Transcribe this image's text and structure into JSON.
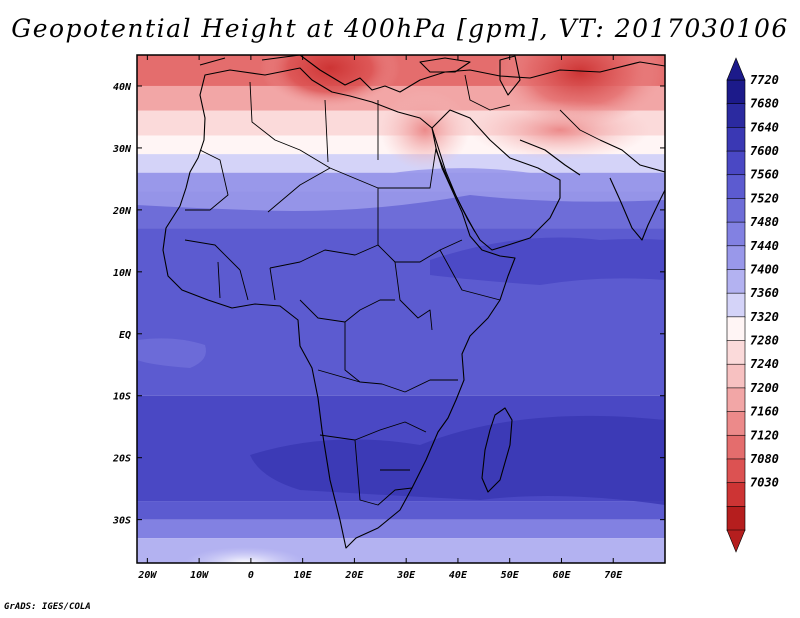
{
  "title": "Geopotential Height at 400hPa [gpm], VT: 2017030106",
  "footer": "GrADS: IGES/COLA",
  "axes": {
    "lon_labels": [
      "20W",
      "10W",
      "0",
      "10E",
      "20E",
      "30E",
      "40E",
      "50E",
      "60E",
      "70E"
    ],
    "lat_labels": [
      "40N",
      "30N",
      "20N",
      "10N",
      "EQ",
      "10S",
      "20S",
      "30S"
    ]
  },
  "colorbar": {
    "labels": [
      "7720",
      "7680",
      "7640",
      "7600",
      "7560",
      "7520",
      "7480",
      "7440",
      "7400",
      "7360",
      "7320",
      "7280",
      "7240",
      "7200",
      "7160",
      "7120",
      "7080",
      "7030"
    ],
    "colors": [
      "#1c1a8a",
      "#2b2aa0",
      "#3a38b4",
      "#4a48c4",
      "#5c5bd0",
      "#6e6dd8",
      "#8281e2",
      "#9998ea",
      "#b3b2f1",
      "#d4d3f8",
      "#fff5f5",
      "#fbdada",
      "#f7c1c1",
      "#f2a6a6",
      "#ec8a8a",
      "#e46d6d",
      "#dc5252",
      "#cd3434",
      "#b51e1e"
    ],
    "top_arrow_color": "#1c1a8a",
    "bottom_arrow_color": "#b51e1e"
  },
  "map": {
    "extent": {
      "lon_min": -22,
      "lon_max": 80,
      "lat_min": -37,
      "lat_max": 45
    },
    "field_bands": [
      {
        "lat_top": 45,
        "lat_bottom": 40,
        "color": "#e46d6d"
      },
      {
        "lat_top": 40,
        "lat_bottom": 36,
        "color": "#f2a6a6"
      },
      {
        "lat_top": 36,
        "lat_bottom": 32,
        "color": "#fbdada"
      },
      {
        "lat_top": 32,
        "lat_bottom": 29,
        "color": "#fff5f5"
      },
      {
        "lat_top": 29,
        "lat_bottom": 26,
        "color": "#d4d3f8"
      },
      {
        "lat_top": 26,
        "lat_bottom": 23,
        "color": "#9998ea"
      },
      {
        "lat_top": 23,
        "lat_bottom": 17,
        "color": "#6e6dd8"
      },
      {
        "lat_top": 17,
        "lat_bottom": -10,
        "color": "#5c5bd0"
      },
      {
        "lat_top": -10,
        "lat_bottom": -27,
        "color": "#4a48c4"
      },
      {
        "lat_top": -27,
        "lat_bottom": -30,
        "color": "#5c5bd0"
      },
      {
        "lat_top": -30,
        "lat_bottom": -33,
        "color": "#8281e2"
      },
      {
        "lat_top": -33,
        "lat_bottom": -37,
        "color": "#b3b2f1"
      }
    ]
  }
}
